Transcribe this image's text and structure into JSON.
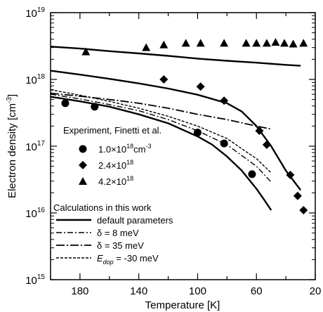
{
  "chart_data": {
    "type": "line",
    "title": "",
    "xlabel": "Temperature [K]",
    "ylabel": "Electron density [cm",
    "ylabel_sup": "-3",
    "ylabel_end": "]",
    "xlim": [
      200,
      20
    ],
    "ylim": [
      1000000000000000.0,
      1e+19
    ],
    "yscale": "log",
    "x_ticks": [
      180,
      140,
      100,
      60,
      20
    ],
    "x_tick_labels": [
      "180",
      "140",
      "100",
      "60",
      "20"
    ],
    "y_ticks": [
      {
        "value": 1000000000000000.0,
        "base": "10",
        "exp": "15"
      },
      {
        "value": 1e+16,
        "base": "10",
        "exp": "16"
      },
      {
        "value": 1e+17,
        "base": "10",
        "exp": "17"
      },
      {
        "value": 1e+18,
        "base": "10",
        "exp": "18"
      },
      {
        "value": 1e+19,
        "base": "10",
        "exp": "19"
      }
    ],
    "grid": false,
    "legend": {
      "experiment_title": "Experiment, Finetti et al.",
      "experiment_items": [
        {
          "marker": "circle",
          "label": "1.0×10",
          "exp": "18",
          "unit": "cm",
          "unit_exp": "-3"
        },
        {
          "marker": "diamond",
          "label": "2.4×10",
          "exp": "18",
          "unit": "",
          "unit_exp": ""
        },
        {
          "marker": "triangle",
          "label": "4.2×10",
          "exp": "18",
          "unit": "",
          "unit_exp": ""
        }
      ],
      "calc_title": "Calculations in this work",
      "calc_items": [
        {
          "style": "solid",
          "label": "default parameters",
          "label_sub": ""
        },
        {
          "style": "dashdot",
          "label": "δ = 8 meV",
          "label_sub": ""
        },
        {
          "style": "dashdot_long",
          "label": "δ = 35 meV",
          "label_sub": ""
        },
        {
          "style": "dashed",
          "label": "E",
          "label_sub": "dop",
          "label_end": " = -30 meV"
        }
      ]
    },
    "series": [
      {
        "name": "1.0×10^18 cm^-3",
        "kind": "scatter",
        "marker": "circle",
        "x": [
          190,
          170,
          100,
          82,
          63
        ],
        "y": [
          4.4e+17,
          3.9e+17,
          1.6e+17,
          1.1e+17,
          3.8e+16
        ]
      },
      {
        "name": "2.4×10^18",
        "kind": "scatter",
        "marker": "diamond",
        "x": [
          123,
          98,
          82,
          58,
          53,
          37,
          32,
          28
        ],
        "y": [
          1e+18,
          7.8e+17,
          4.8e+17,
          1.7e+17,
          1.05e+17,
          3.7e+16,
          1.8e+16,
          1.1e+16
        ]
      },
      {
        "name": "4.2×10^18",
        "kind": "scatter",
        "marker": "triangle",
        "x": [
          176,
          135,
          123,
          108,
          98,
          82,
          67,
          60,
          53,
          47,
          41,
          35,
          28
        ],
        "y": [
          2.6e+18,
          3e+18,
          3.3e+18,
          3.5e+18,
          3.5e+18,
          3.5e+18,
          3.5e+18,
          3.5e+18,
          3.5e+18,
          3.6e+18,
          3.5e+18,
          3.4e+18,
          3.5e+18
        ]
      },
      {
        "name": "default parameters (4.2×10^18)",
        "kind": "line",
        "style": "solid",
        "x": [
          200,
          180,
          160,
          140,
          120,
          100,
          80,
          60,
          40,
          30
        ],
        "y": [
          3.1e+18,
          2.9e+18,
          2.65e+18,
          2.45e+18,
          2.25e+18,
          2.05e+18,
          1.9e+18,
          1.78e+18,
          1.65e+18,
          1.6e+18
        ]
      },
      {
        "name": "default parameters (2.4×10^18)",
        "kind": "line",
        "style": "solid",
        "x": [
          200,
          180,
          160,
          140,
          120,
          100,
          80,
          70,
          60,
          50,
          40,
          30
        ],
        "y": [
          1.35e+18,
          1.18e+18,
          1.02e+18,
          8.7e+17,
          7.3e+17,
          5.9e+17,
          4.4e+17,
          3.3e+17,
          2e+17,
          1e+17,
          4.3e+16,
          2.2e+16
        ]
      },
      {
        "name": "default parameters (1.0×10^18)",
        "kind": "line",
        "style": "solid",
        "x": [
          200,
          180,
          160,
          140,
          120,
          100,
          90,
          80,
          70,
          60,
          55,
          50
        ],
        "y": [
          5.5e+17,
          4.7e+17,
          3.9e+17,
          3e+17,
          2.2e+17,
          1.4e+17,
          1.05e+17,
          7e+16,
          4.3e+16,
          2.3e+16,
          1.6e+16,
          1.1e+16
        ]
      },
      {
        "name": "δ = 8 meV",
        "kind": "line",
        "style": "dashdot",
        "x": [
          200,
          180,
          160,
          140,
          120,
          100,
          80,
          60,
          50
        ],
        "y": [
          6e+17,
          5.1e+17,
          4.2e+17,
          3.4e+17,
          2.5e+17,
          1.7e+17,
          1.05e+17,
          5e+16,
          2.9e+16
        ]
      },
      {
        "name": "δ = 35 meV",
        "kind": "line",
        "style": "dashdot_long",
        "x": [
          200,
          180,
          160,
          140,
          120,
          100,
          80,
          60,
          50
        ],
        "y": [
          6.2e+17,
          5.6e+17,
          5e+17,
          4.4e+17,
          3.7e+17,
          3e+17,
          2.5e+17,
          2e+17,
          1.8e+17
        ]
      },
      {
        "name": "E_dop = -30 meV",
        "kind": "line",
        "style": "dashed",
        "x": [
          200,
          180,
          160,
          140,
          120,
          100,
          80,
          60,
          50
        ],
        "y": [
          7e+17,
          5.8e+17,
          4.7e+17,
          3.7e+17,
          2.8e+17,
          2e+17,
          1.3e+17,
          6.5e+16,
          4e+16
        ]
      }
    ]
  }
}
